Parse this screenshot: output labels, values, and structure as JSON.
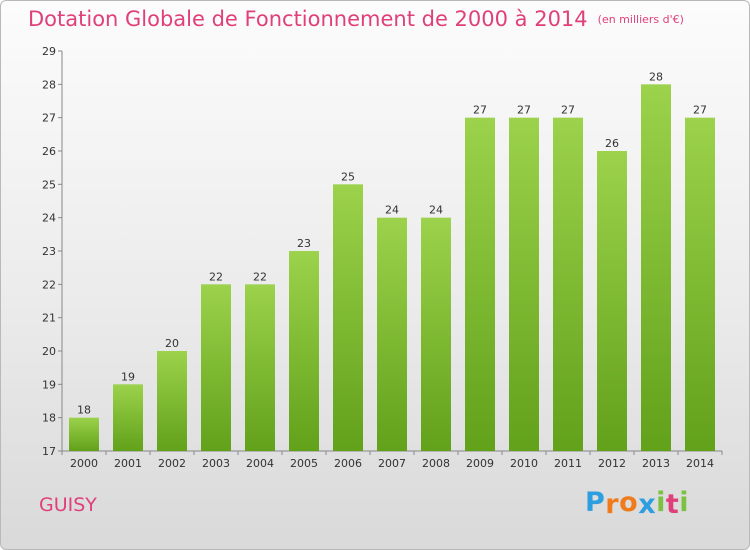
{
  "title": "Dotation Globale de Fonctionnement de 2000 à 2014",
  "unit_note": "(en milliers d'€)",
  "commune": "GUISY",
  "logo": {
    "letters": [
      "P",
      "r",
      "o",
      "x",
      "i",
      "t",
      "i"
    ],
    "colors": [
      "#2d9ee0",
      "#f07b1a",
      "#f07b1a",
      "#2d9ee0",
      "#7bc142",
      "#e0407a",
      "#7bc142"
    ]
  },
  "colors": {
    "accent": "#e0407a",
    "bar_top": "#9cd24c",
    "bar_bottom": "#62a11a"
  },
  "chart_data": {
    "type": "bar",
    "title": "Dotation Globale de Fonctionnement de 2000 à 2014",
    "xlabel": "",
    "ylabel": "",
    "categories": [
      "2000",
      "2001",
      "2002",
      "2003",
      "2004",
      "2005",
      "2006",
      "2007",
      "2008",
      "2009",
      "2010",
      "2011",
      "2012",
      "2013",
      "2014"
    ],
    "values": [
      18,
      19,
      20,
      22,
      22,
      23,
      25,
      24,
      24,
      27,
      27,
      27,
      26,
      28,
      27
    ],
    "ylim": [
      17,
      29
    ],
    "yticks": [
      17,
      18,
      19,
      20,
      21,
      22,
      23,
      24,
      25,
      26,
      27,
      28,
      29
    ],
    "grid": false,
    "legend": "none"
  }
}
